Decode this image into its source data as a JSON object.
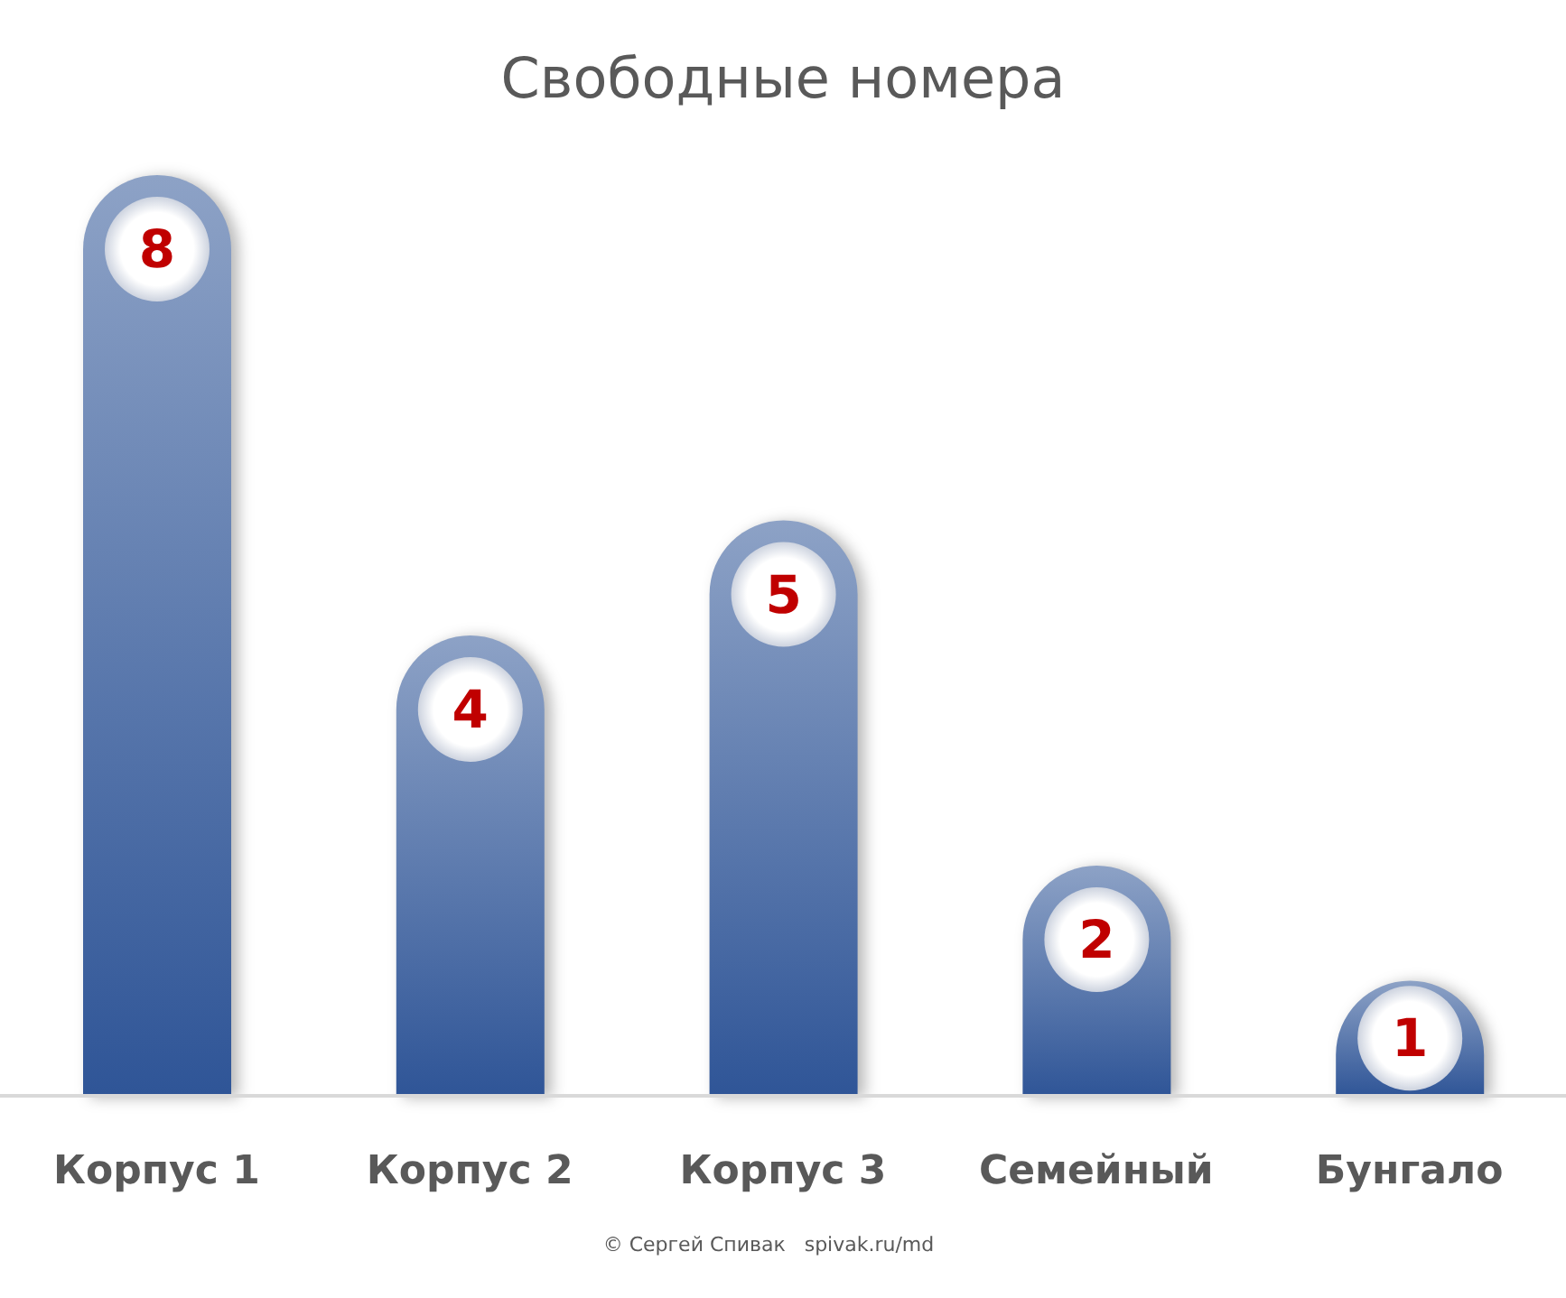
{
  "chart_data": {
    "type": "bar",
    "title": "Свободные номера",
    "categories": [
      "Корпус 1",
      "Корпус 2",
      "Корпус 3",
      "Семейный",
      "Бунгало"
    ],
    "values": [
      8,
      4,
      5,
      2,
      1
    ],
    "color": "#2f5597",
    "data_labels": true,
    "annotations": [
      "© Сергей Спивак   spivak.ru/md"
    ]
  }
}
